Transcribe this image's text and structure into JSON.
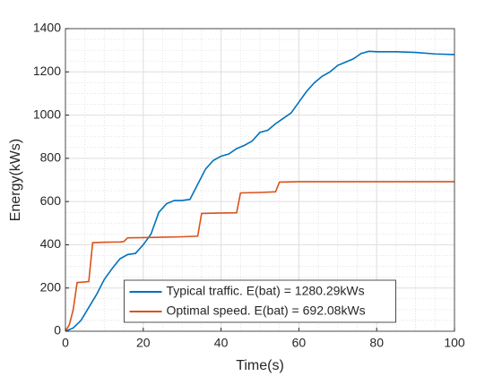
{
  "chart_data": {
    "type": "line",
    "xlabel": "Time(s)",
    "ylabel": "Energy(kWs)",
    "xlim": [
      0,
      100
    ],
    "xticks": [
      0,
      20,
      40,
      60,
      80,
      100
    ],
    "ylim": [
      0,
      1400
    ],
    "yticks": [
      0,
      200,
      400,
      600,
      800,
      1000,
      1200,
      1400
    ],
    "grid": true,
    "minor_grid": true,
    "legend": "lower center",
    "series": [
      {
        "name": "Typical traffic. E(bat) = 1280.29kWs",
        "color": "#0072bd",
        "x": [
          0,
          2,
          4,
          6,
          8,
          10,
          12,
          14,
          16,
          18,
          20,
          22,
          24,
          26,
          28,
          30,
          32,
          34,
          36,
          38,
          40,
          42,
          44,
          46,
          48,
          50,
          52,
          54,
          56,
          58,
          60,
          62,
          64,
          66,
          68,
          70,
          72,
          74,
          76,
          78,
          80,
          85,
          90,
          95,
          100
        ],
        "values": [
          0,
          15,
          50,
          110,
          170,
          240,
          290,
          335,
          355,
          360,
          400,
          450,
          550,
          590,
          605,
          605,
          610,
          680,
          750,
          790,
          810,
          820,
          845,
          860,
          880,
          920,
          930,
          960,
          985,
          1010,
          1060,
          1110,
          1150,
          1180,
          1200,
          1230,
          1245,
          1260,
          1285,
          1295,
          1293,
          1293,
          1290,
          1283,
          1280
        ]
      },
      {
        "name": "Optimal speed. E(bat) = 692.08kWs",
        "color": "#d95319",
        "x": [
          0,
          1,
          2,
          3,
          5,
          6,
          7,
          10,
          14,
          15,
          16,
          20,
          25,
          30,
          34,
          35,
          40,
          44,
          45,
          50,
          54,
          55,
          60,
          80,
          100
        ],
        "values": [
          0,
          30,
          100,
          225,
          228,
          230,
          410,
          412,
          413,
          415,
          432,
          433,
          435,
          437,
          440,
          545,
          547,
          548,
          640,
          642,
          645,
          690,
          692,
          692,
          692
        ]
      }
    ]
  }
}
